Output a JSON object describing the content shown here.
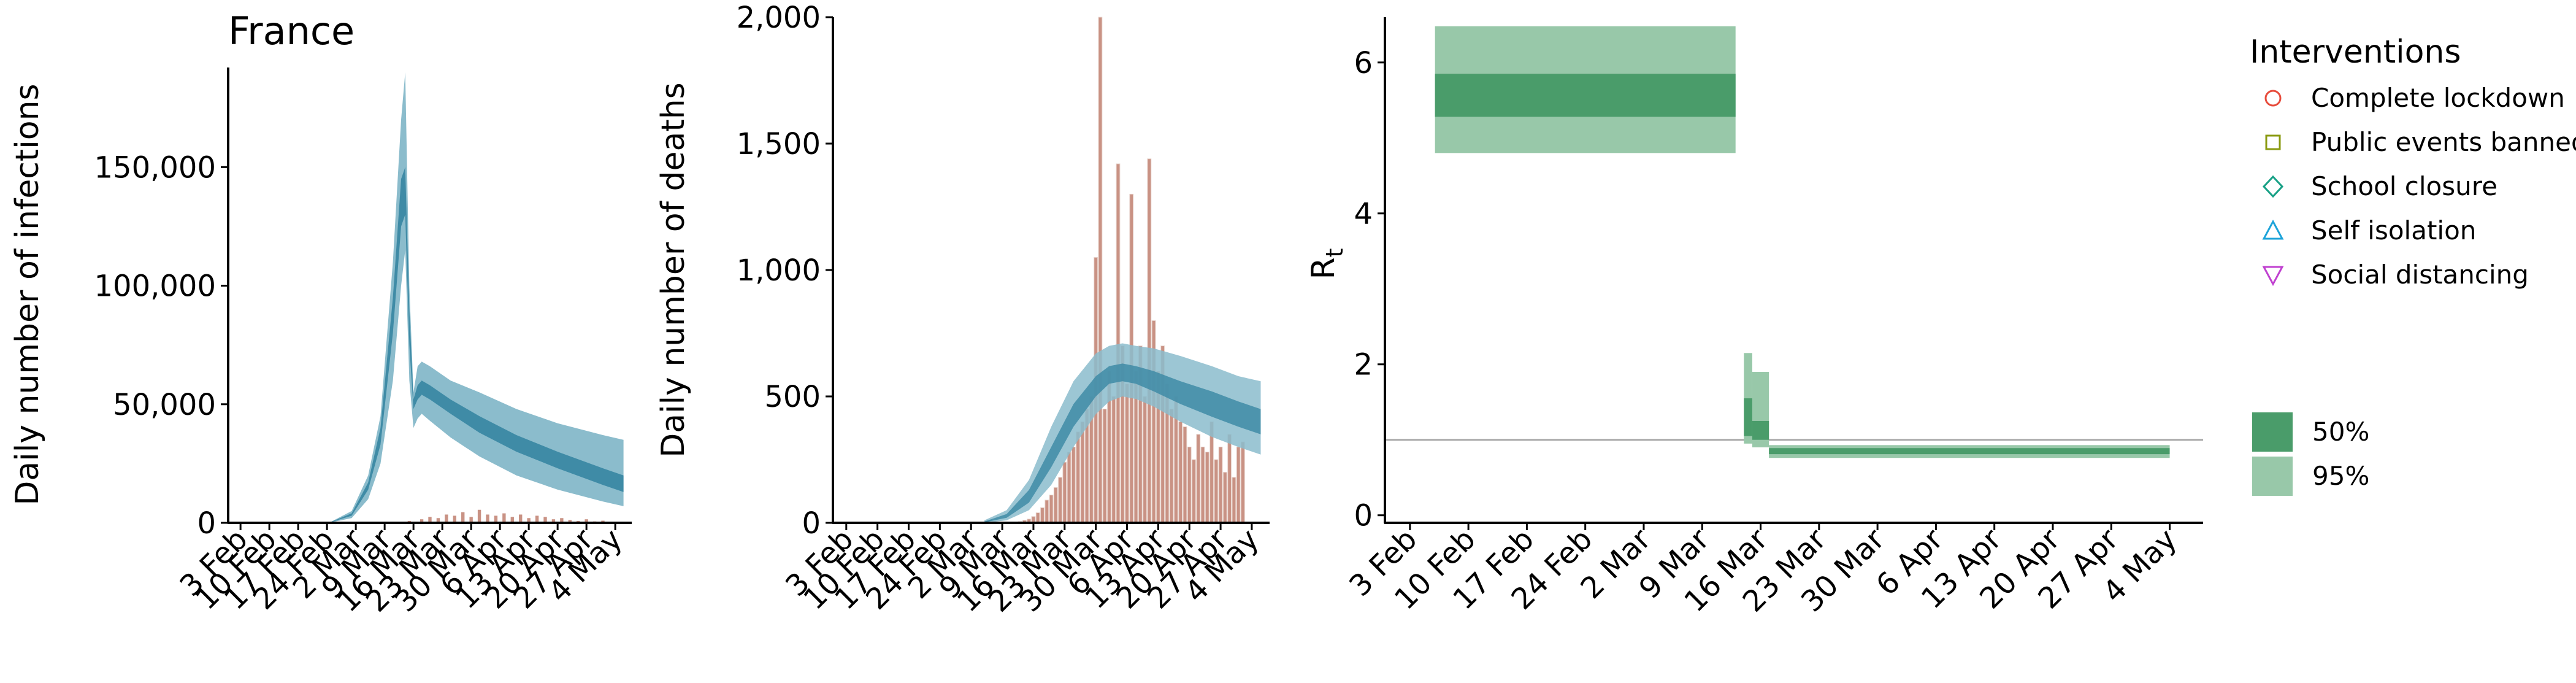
{
  "colors": {
    "infection_band_95": "#8bbccc",
    "infection_band_50": "#3f8ba6",
    "observed_bar": "#c99284",
    "rt_band_95": "#98c8a9",
    "rt_band_50": "#4a9c6a",
    "reference_line": "#aaaaaa",
    "lockdown": "#e74c3c",
    "public_events": "#8a9a10",
    "school": "#16a085",
    "self_isolation": "#1ca3d9",
    "social_distancing": "#c040d0"
  },
  "chart_data": [
    {
      "type": "area",
      "title": "France",
      "xlabel": "",
      "ylabel": "Daily number of infections",
      "x_ticks": [
        "3 Feb",
        "10 Feb",
        "17 Feb",
        "24 Feb",
        "2 Mar",
        "9 Mar",
        "16 Mar",
        "23 Mar",
        "30 Mar",
        "6 Apr",
        "13 Apr",
        "20 Apr",
        "27 Apr",
        "4 May"
      ],
      "y_ticks": [
        "0",
        "50,000",
        "100,000",
        "150,000"
      ],
      "xlim": [
        "2020-01-31",
        "2020-05-08"
      ],
      "ylim": [
        0,
        192000
      ],
      "grid": false,
      "series": [
        {
          "x": [
            "2020-02-10",
            "2020-02-20",
            "2020-02-25",
            "2020-03-01",
            "2020-03-05",
            "2020-03-08",
            "2020-03-11",
            "2020-03-13",
            "2020-03-14",
            "2020-03-15",
            "2020-03-16",
            "2020-03-17",
            "2020-03-18",
            "2020-03-20",
            "2020-03-25",
            "2020-04-01",
            "2020-04-10",
            "2020-04-20",
            "2020-05-01",
            "2020-05-06"
          ],
          "lower95": [
            0,
            0,
            200,
            2000,
            10000,
            25000,
            60000,
            100000,
            115000,
            60000,
            40000,
            44000,
            46000,
            43000,
            36000,
            28000,
            20000,
            14000,
            9000,
            7000
          ],
          "upper95": [
            0,
            0,
            500,
            5000,
            20000,
            45000,
            110000,
            170000,
            190000,
            100000,
            55000,
            66000,
            68000,
            66000,
            60000,
            55000,
            48000,
            42000,
            37000,
            35000
          ],
          "lower50": [
            0,
            0,
            300,
            3000,
            14000,
            33000,
            80000,
            125000,
            130000,
            75000,
            48000,
            52000,
            54000,
            52000,
            46000,
            38000,
            30000,
            23000,
            16000,
            13000
          ],
          "upper50": [
            0,
            0,
            400,
            4000,
            17000,
            40000,
            95000,
            145000,
            150000,
            90000,
            52000,
            58000,
            60000,
            58000,
            52000,
            45000,
            37000,
            30000,
            23000,
            20000
          ]
        },
        {
          "x": [
            "2020-03-15",
            "2020-03-18",
            "2020-03-20",
            "2020-03-22",
            "2020-03-24",
            "2020-03-26",
            "2020-03-28",
            "2020-03-30",
            "2020-04-01",
            "2020-04-03",
            "2020-04-05",
            "2020-04-07",
            "2020-04-09",
            "2020-04-11",
            "2020-04-13",
            "2020-04-15",
            "2020-04-17",
            "2020-04-19",
            "2020-04-21",
            "2020-04-23",
            "2020-04-25",
            "2020-04-27",
            "2020-04-29",
            "2020-05-01",
            "2020-05-03",
            "2020-05-05"
          ],
          "values": [
            800,
            1500,
            2500,
            2000,
            3500,
            3000,
            4500,
            2500,
            5500,
            3500,
            3000,
            4000,
            2500,
            3500,
            2000,
            3000,
            2500,
            1500,
            2000,
            1200,
            800,
            1500,
            600,
            900,
            500,
            300
          ]
        }
      ]
    },
    {
      "type": "bar",
      "title": "",
      "xlabel": "",
      "ylabel": "Daily number of deaths",
      "x_ticks": [
        "3 Feb",
        "10 Feb",
        "17 Feb",
        "24 Feb",
        "2 Mar",
        "9 Mar",
        "16 Mar",
        "23 Mar",
        "30 Mar",
        "6 Apr",
        "13 Apr",
        "20 Apr",
        "27 Apr",
        "4 May"
      ],
      "y_ticks": [
        "0",
        "500",
        "1,000",
        "1,500",
        "2,000"
      ],
      "xlim": [
        "2020-01-31",
        "2020-05-08"
      ],
      "ylim": [
        0,
        2000
      ],
      "grid": false,
      "series": [
        {
          "start_date": "2020-03-13",
          "values": [
            5,
            10,
            15,
            25,
            40,
            60,
            90,
            110,
            140,
            180,
            240,
            280,
            300,
            360,
            400,
            450,
            500,
            1050,
            2000,
            450,
            600,
            500,
            1420,
            700,
            550,
            1300,
            600,
            700,
            500,
            1440,
            800,
            600,
            700,
            550,
            450,
            500,
            400,
            380,
            300,
            250,
            350,
            300,
            280,
            400,
            250,
            300,
            200,
            350,
            180,
            300,
            320
          ]
        },
        {
          "x": [
            "2020-03-05",
            "2020-03-10",
            "2020-03-15",
            "2020-03-20",
            "2020-03-25",
            "2020-03-30",
            "2020-04-02",
            "2020-04-05",
            "2020-04-08",
            "2020-04-12",
            "2020-04-18",
            "2020-04-25",
            "2020-05-01",
            "2020-05-06"
          ],
          "lower95": [
            0,
            10,
            50,
            150,
            300,
            430,
            480,
            500,
            490,
            460,
            400,
            340,
            300,
            270
          ],
          "upper95": [
            10,
            50,
            170,
            380,
            560,
            670,
            700,
            710,
            700,
            690,
            660,
            620,
            580,
            560
          ],
          "lower50": [
            2,
            20,
            80,
            220,
            380,
            500,
            550,
            560,
            550,
            520,
            470,
            420,
            380,
            350
          ],
          "upper50": [
            5,
            35,
            130,
            300,
            470,
            580,
            620,
            630,
            620,
            600,
            560,
            520,
            480,
            450
          ]
        }
      ]
    },
    {
      "type": "area",
      "title": "",
      "xlabel": "",
      "ylabel": "R",
      "ylabel_sub": "t",
      "x_ticks": [
        "3 Feb",
        "10 Feb",
        "17 Feb",
        "24 Feb",
        "2 Mar",
        "9 Mar",
        "16 Mar",
        "23 Mar",
        "30 Mar",
        "6 Apr",
        "13 Apr",
        "20 Apr",
        "27 Apr",
        "4 May"
      ],
      "y_ticks": [
        "0",
        "2",
        "4",
        "6"
      ],
      "xlim": [
        "2020-01-31",
        "2020-05-08"
      ],
      "ylim": [
        -0.1,
        6.6
      ],
      "reference_line": 1,
      "grid": false,
      "series": [
        {
          "x_start": "2020-02-06",
          "x_end": "2020-03-13",
          "lower95": 4.8,
          "upper95": 6.48,
          "lower50": 5.28,
          "upper50": 5.85
        },
        {
          "x_start": "2020-03-14",
          "x_end": "2020-03-15",
          "lower95": 0.95,
          "upper95": 2.15,
          "lower50": 1.05,
          "upper50": 1.55
        },
        {
          "x_start": "2020-03-15",
          "x_end": "2020-03-17",
          "lower95": 0.9,
          "upper95": 1.9,
          "lower50": 1.0,
          "upper50": 1.25
        },
        {
          "x_start": "2020-03-17",
          "x_end": "2020-05-04",
          "lower95": 0.76,
          "upper95": 0.93,
          "lower50": 0.81,
          "upper50": 0.89
        }
      ]
    }
  ],
  "legend": {
    "interventions_title": "Interventions",
    "interventions": [
      {
        "label": "Complete lockdown",
        "icon": "circle-icon"
      },
      {
        "label": "Public events banned",
        "icon": "square-icon"
      },
      {
        "label": "School closure",
        "icon": "diamond-icon"
      },
      {
        "label": "Self isolation",
        "icon": "triangle-up-icon"
      },
      {
        "label": "Social distancing",
        "icon": "triangle-down-icon"
      }
    ],
    "intervals": [
      {
        "label": "50%"
      },
      {
        "label": "95%"
      }
    ]
  }
}
